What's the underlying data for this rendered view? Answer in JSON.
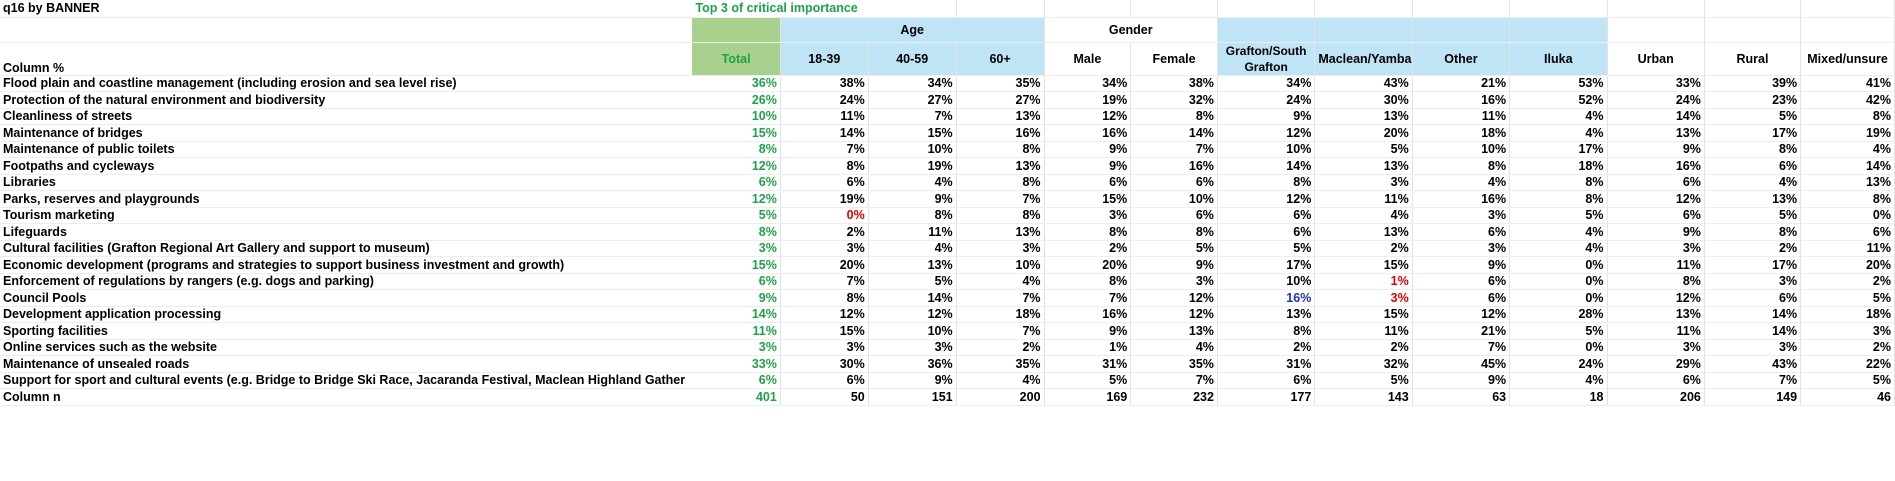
{
  "title": "q16 by BANNER",
  "subtitle": "Top 3 of critical importance",
  "row_header": "Column %",
  "groups": {
    "age": "Age",
    "gender": "Gender"
  },
  "columns": [
    "Total",
    "18-39",
    "40-59",
    "60+",
    "Male",
    "Female",
    "Grafton/South Grafton",
    "Maclean/Yamba",
    "Other",
    "Iluka",
    "Urban",
    "Rural",
    "Mixed/unsure"
  ],
  "rows": [
    {
      "label": "Flood plain and coastline management (including erosion and sea level rise)",
      "values": [
        "36%",
        "38%",
        "34%",
        "35%",
        "34%",
        "38%",
        "34%",
        "43%",
        "21%",
        "53%",
        "33%",
        "39%",
        "41%"
      ]
    },
    {
      "label": "Protection of the natural environment and biodiversity",
      "values": [
        "26%",
        "24%",
        "27%",
        "27%",
        "19%",
        "32%",
        "24%",
        "30%",
        "16%",
        "52%",
        "24%",
        "23%",
        "42%"
      ]
    },
    {
      "label": "Cleanliness of streets",
      "values": [
        "10%",
        "11%",
        "7%",
        "13%",
        "12%",
        "8%",
        "9%",
        "13%",
        "11%",
        "4%",
        "14%",
        "5%",
        "8%"
      ]
    },
    {
      "label": "Maintenance of bridges",
      "values": [
        "15%",
        "14%",
        "15%",
        "16%",
        "16%",
        "14%",
        "12%",
        "20%",
        "18%",
        "4%",
        "13%",
        "17%",
        "19%"
      ]
    },
    {
      "label": "Maintenance of public toilets",
      "values": [
        "8%",
        "7%",
        "10%",
        "8%",
        "9%",
        "7%",
        "10%",
        "5%",
        "10%",
        "17%",
        "9%",
        "8%",
        "4%"
      ]
    },
    {
      "label": "Footpaths and cycleways",
      "values": [
        "12%",
        "8%",
        "19%",
        "13%",
        "9%",
        "16%",
        "14%",
        "13%",
        "8%",
        "18%",
        "16%",
        "6%",
        "14%"
      ]
    },
    {
      "label": "Libraries",
      "values": [
        "6%",
        "6%",
        "4%",
        "8%",
        "6%",
        "6%",
        "8%",
        "3%",
        "4%",
        "8%",
        "6%",
        "4%",
        "13%"
      ]
    },
    {
      "label": "Parks, reserves and playgrounds",
      "values": [
        "12%",
        "19%",
        "9%",
        "7%",
        "15%",
        "10%",
        "12%",
        "11%",
        "16%",
        "8%",
        "12%",
        "13%",
        "8%"
      ]
    },
    {
      "label": "Tourism marketing",
      "values": [
        "5%",
        "0%",
        "8%",
        "8%",
        "3%",
        "6%",
        "6%",
        "4%",
        "3%",
        "5%",
        "6%",
        "5%",
        "0%"
      ]
    },
    {
      "label": "Lifeguards",
      "values": [
        "8%",
        "2%",
        "11%",
        "13%",
        "8%",
        "8%",
        "6%",
        "13%",
        "6%",
        "4%",
        "9%",
        "8%",
        "6%"
      ]
    },
    {
      "label": "Cultural facilities (Grafton Regional Art Gallery and support to museum)",
      "values": [
        "3%",
        "3%",
        "4%",
        "3%",
        "2%",
        "5%",
        "5%",
        "2%",
        "3%",
        "4%",
        "3%",
        "2%",
        "11%"
      ]
    },
    {
      "label": "Economic development (programs and strategies to support business investment and growth)",
      "values": [
        "15%",
        "20%",
        "13%",
        "10%",
        "20%",
        "9%",
        "17%",
        "15%",
        "9%",
        "0%",
        "11%",
        "17%",
        "20%"
      ]
    },
    {
      "label": "Enforcement of regulations by rangers (e.g. dogs and parking)",
      "values": [
        "6%",
        "7%",
        "5%",
        "4%",
        "8%",
        "3%",
        "10%",
        "1%",
        "6%",
        "0%",
        "8%",
        "3%",
        "2%"
      ]
    },
    {
      "label": "Council Pools",
      "values": [
        "9%",
        "8%",
        "14%",
        "7%",
        "7%",
        "12%",
        "16%",
        "3%",
        "6%",
        "0%",
        "12%",
        "6%",
        "5%"
      ]
    },
    {
      "label": "Development application processing",
      "values": [
        "14%",
        "12%",
        "12%",
        "18%",
        "16%",
        "12%",
        "13%",
        "15%",
        "12%",
        "28%",
        "13%",
        "14%",
        "18%"
      ]
    },
    {
      "label": "Sporting facilities",
      "values": [
        "11%",
        "15%",
        "10%",
        "7%",
        "9%",
        "13%",
        "8%",
        "11%",
        "21%",
        "5%",
        "11%",
        "14%",
        "3%"
      ]
    },
    {
      "label": "Online services such as the website",
      "values": [
        "3%",
        "3%",
        "3%",
        "2%",
        "1%",
        "4%",
        "2%",
        "2%",
        "7%",
        "0%",
        "3%",
        "3%",
        "2%"
      ]
    },
    {
      "label": "Maintenance of unsealed roads",
      "values": [
        "33%",
        "30%",
        "36%",
        "35%",
        "31%",
        "35%",
        "31%",
        "32%",
        "45%",
        "24%",
        "29%",
        "43%",
        "22%"
      ]
    },
    {
      "label": "Support for sport and cultural events (e.g. Bridge to Bridge Ski Race, Jacaranda Festival, Maclean Highland Gather",
      "values": [
        "6%",
        "6%",
        "9%",
        "4%",
        "5%",
        "7%",
        "6%",
        "5%",
        "9%",
        "4%",
        "6%",
        "7%",
        "5%"
      ]
    }
  ],
  "column_n": {
    "label": "Column n",
    "values": [
      "401",
      "50",
      "151",
      "200",
      "169",
      "232",
      "177",
      "143",
      "63",
      "18",
      "206",
      "149",
      "46"
    ]
  },
  "highlights": {
    "red": [
      [
        8,
        1
      ],
      [
        12,
        7
      ],
      [
        13,
        7
      ]
    ],
    "navy": [
      [
        13,
        6
      ]
    ]
  },
  "colors": {
    "total_text": "#1aa34a",
    "total_fill": "#a9d18e",
    "band_fill": "#bfe4f5",
    "low": "#e00000",
    "high": "#1f2fc7"
  }
}
